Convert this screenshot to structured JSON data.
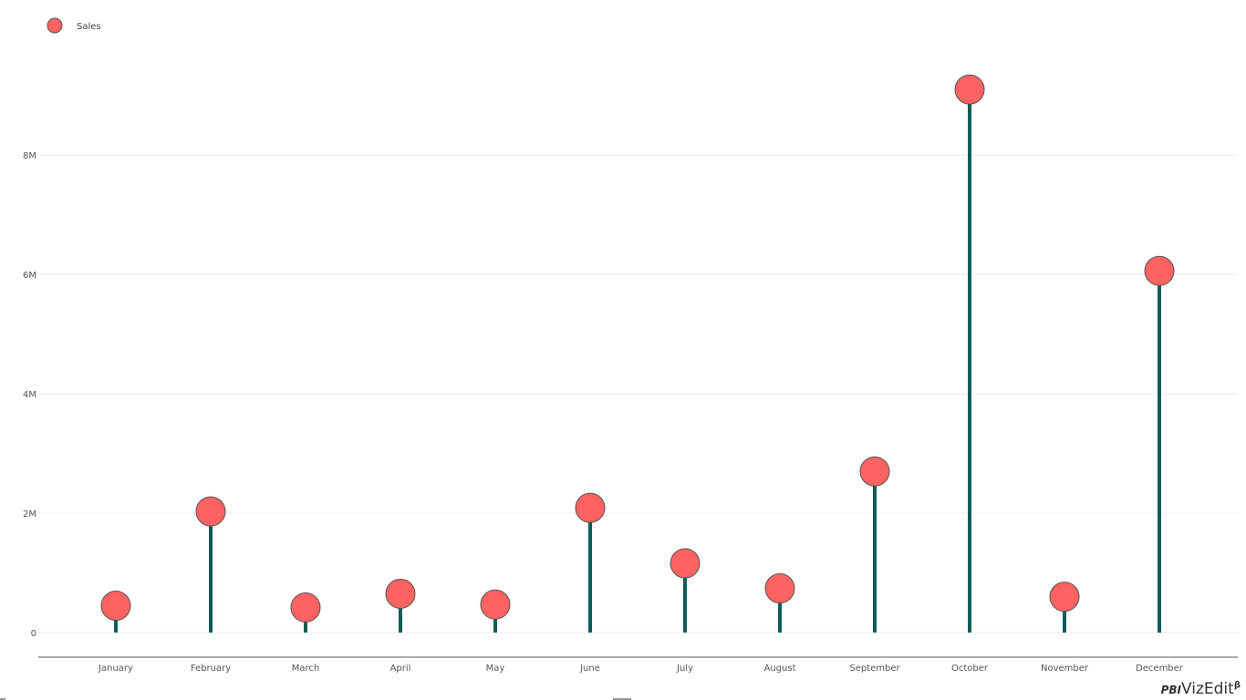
{
  "chart_data": {
    "type": "lollipop",
    "categories": [
      "January",
      "February",
      "March",
      "April",
      "May",
      "June",
      "July",
      "August",
      "September",
      "October",
      "November",
      "December"
    ],
    "series": [
      {
        "name": "Sales",
        "values": [
          450000,
          2030000,
          420000,
          650000,
          470000,
          2090000,
          1160000,
          740000,
          2700000,
          9100000,
          600000,
          6060000
        ]
      }
    ],
    "ylim": [
      0,
      9500000
    ],
    "yticks": [
      {
        "value": 0,
        "label": "0"
      },
      {
        "value": 2000000,
        "label": "2M"
      },
      {
        "value": 4000000,
        "label": "4M"
      },
      {
        "value": 6000000,
        "label": "6M"
      },
      {
        "value": 8000000,
        "label": "8M"
      }
    ],
    "grid": true,
    "legend_position": "top-left",
    "colors": {
      "marker": "#ff6361",
      "marker_stroke": "#555555",
      "stem": "#0e5e56",
      "grid": "#ececec",
      "axis": "#555555"
    }
  },
  "branding": {
    "prefix": "PBI",
    "name": "VizEdit",
    "suffix": "β"
  }
}
